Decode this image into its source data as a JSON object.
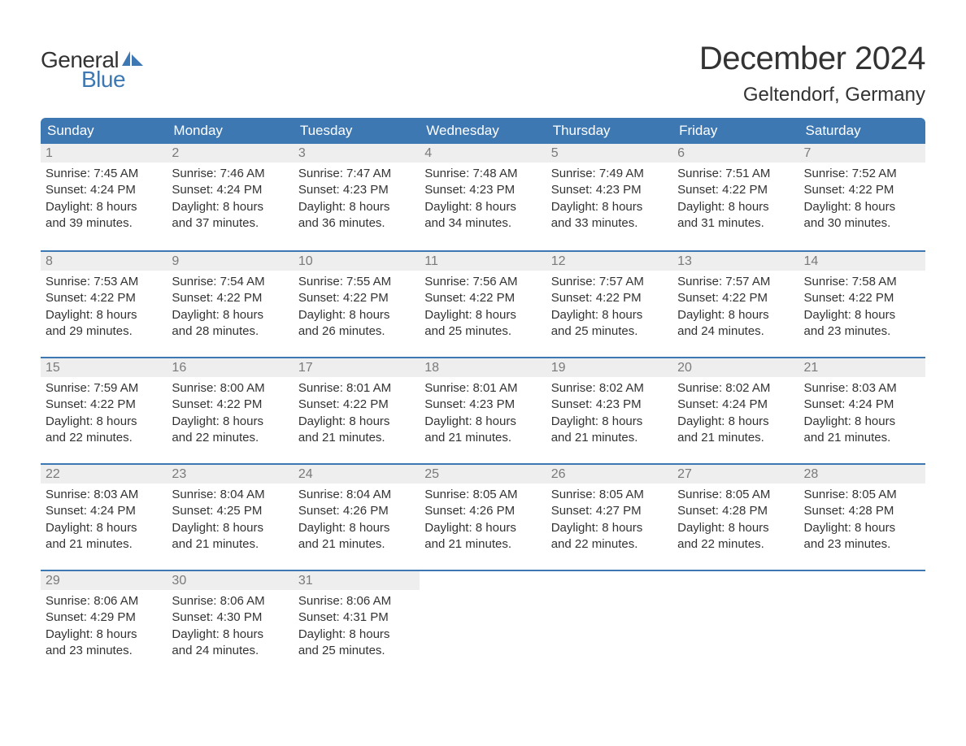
{
  "logo": {
    "word1": "General",
    "word2": "Blue",
    "word1_color": "#333333",
    "word2_color": "#3e78b3",
    "flag_color": "#3e78b3"
  },
  "title": "December 2024",
  "location": "Geltendorf, Germany",
  "styling": {
    "header_bg": "#3e78b3",
    "header_text_color": "#ffffff",
    "day_number_bg": "#eeeeee",
    "day_number_color": "#7a7a7a",
    "body_text_color": "#333333",
    "week_border_color": "#3e78b3",
    "page_bg": "#ffffff",
    "title_fontsize": 40,
    "location_fontsize": 24,
    "header_fontsize": 17,
    "body_fontsize": 15,
    "day_number_fontsize": 16,
    "columns": 7,
    "rows": 5
  },
  "day_headers": [
    "Sunday",
    "Monday",
    "Tuesday",
    "Wednesday",
    "Thursday",
    "Friday",
    "Saturday"
  ],
  "weeks": [
    [
      {
        "num": "1",
        "sunrise": "Sunrise: 7:45 AM",
        "sunset": "Sunset: 4:24 PM",
        "dl1": "Daylight: 8 hours",
        "dl2": "and 39 minutes."
      },
      {
        "num": "2",
        "sunrise": "Sunrise: 7:46 AM",
        "sunset": "Sunset: 4:24 PM",
        "dl1": "Daylight: 8 hours",
        "dl2": "and 37 minutes."
      },
      {
        "num": "3",
        "sunrise": "Sunrise: 7:47 AM",
        "sunset": "Sunset: 4:23 PM",
        "dl1": "Daylight: 8 hours",
        "dl2": "and 36 minutes."
      },
      {
        "num": "4",
        "sunrise": "Sunrise: 7:48 AM",
        "sunset": "Sunset: 4:23 PM",
        "dl1": "Daylight: 8 hours",
        "dl2": "and 34 minutes."
      },
      {
        "num": "5",
        "sunrise": "Sunrise: 7:49 AM",
        "sunset": "Sunset: 4:23 PM",
        "dl1": "Daylight: 8 hours",
        "dl2": "and 33 minutes."
      },
      {
        "num": "6",
        "sunrise": "Sunrise: 7:51 AM",
        "sunset": "Sunset: 4:22 PM",
        "dl1": "Daylight: 8 hours",
        "dl2": "and 31 minutes."
      },
      {
        "num": "7",
        "sunrise": "Sunrise: 7:52 AM",
        "sunset": "Sunset: 4:22 PM",
        "dl1": "Daylight: 8 hours",
        "dl2": "and 30 minutes."
      }
    ],
    [
      {
        "num": "8",
        "sunrise": "Sunrise: 7:53 AM",
        "sunset": "Sunset: 4:22 PM",
        "dl1": "Daylight: 8 hours",
        "dl2": "and 29 minutes."
      },
      {
        "num": "9",
        "sunrise": "Sunrise: 7:54 AM",
        "sunset": "Sunset: 4:22 PM",
        "dl1": "Daylight: 8 hours",
        "dl2": "and 28 minutes."
      },
      {
        "num": "10",
        "sunrise": "Sunrise: 7:55 AM",
        "sunset": "Sunset: 4:22 PM",
        "dl1": "Daylight: 8 hours",
        "dl2": "and 26 minutes."
      },
      {
        "num": "11",
        "sunrise": "Sunrise: 7:56 AM",
        "sunset": "Sunset: 4:22 PM",
        "dl1": "Daylight: 8 hours",
        "dl2": "and 25 minutes."
      },
      {
        "num": "12",
        "sunrise": "Sunrise: 7:57 AM",
        "sunset": "Sunset: 4:22 PM",
        "dl1": "Daylight: 8 hours",
        "dl2": "and 25 minutes."
      },
      {
        "num": "13",
        "sunrise": "Sunrise: 7:57 AM",
        "sunset": "Sunset: 4:22 PM",
        "dl1": "Daylight: 8 hours",
        "dl2": "and 24 minutes."
      },
      {
        "num": "14",
        "sunrise": "Sunrise: 7:58 AM",
        "sunset": "Sunset: 4:22 PM",
        "dl1": "Daylight: 8 hours",
        "dl2": "and 23 minutes."
      }
    ],
    [
      {
        "num": "15",
        "sunrise": "Sunrise: 7:59 AM",
        "sunset": "Sunset: 4:22 PM",
        "dl1": "Daylight: 8 hours",
        "dl2": "and 22 minutes."
      },
      {
        "num": "16",
        "sunrise": "Sunrise: 8:00 AM",
        "sunset": "Sunset: 4:22 PM",
        "dl1": "Daylight: 8 hours",
        "dl2": "and 22 minutes."
      },
      {
        "num": "17",
        "sunrise": "Sunrise: 8:01 AM",
        "sunset": "Sunset: 4:22 PM",
        "dl1": "Daylight: 8 hours",
        "dl2": "and 21 minutes."
      },
      {
        "num": "18",
        "sunrise": "Sunrise: 8:01 AM",
        "sunset": "Sunset: 4:23 PM",
        "dl1": "Daylight: 8 hours",
        "dl2": "and 21 minutes."
      },
      {
        "num": "19",
        "sunrise": "Sunrise: 8:02 AM",
        "sunset": "Sunset: 4:23 PM",
        "dl1": "Daylight: 8 hours",
        "dl2": "and 21 minutes."
      },
      {
        "num": "20",
        "sunrise": "Sunrise: 8:02 AM",
        "sunset": "Sunset: 4:24 PM",
        "dl1": "Daylight: 8 hours",
        "dl2": "and 21 minutes."
      },
      {
        "num": "21",
        "sunrise": "Sunrise: 8:03 AM",
        "sunset": "Sunset: 4:24 PM",
        "dl1": "Daylight: 8 hours",
        "dl2": "and 21 minutes."
      }
    ],
    [
      {
        "num": "22",
        "sunrise": "Sunrise: 8:03 AM",
        "sunset": "Sunset: 4:24 PM",
        "dl1": "Daylight: 8 hours",
        "dl2": "and 21 minutes."
      },
      {
        "num": "23",
        "sunrise": "Sunrise: 8:04 AM",
        "sunset": "Sunset: 4:25 PM",
        "dl1": "Daylight: 8 hours",
        "dl2": "and 21 minutes."
      },
      {
        "num": "24",
        "sunrise": "Sunrise: 8:04 AM",
        "sunset": "Sunset: 4:26 PM",
        "dl1": "Daylight: 8 hours",
        "dl2": "and 21 minutes."
      },
      {
        "num": "25",
        "sunrise": "Sunrise: 8:05 AM",
        "sunset": "Sunset: 4:26 PM",
        "dl1": "Daylight: 8 hours",
        "dl2": "and 21 minutes."
      },
      {
        "num": "26",
        "sunrise": "Sunrise: 8:05 AM",
        "sunset": "Sunset: 4:27 PM",
        "dl1": "Daylight: 8 hours",
        "dl2": "and 22 minutes."
      },
      {
        "num": "27",
        "sunrise": "Sunrise: 8:05 AM",
        "sunset": "Sunset: 4:28 PM",
        "dl1": "Daylight: 8 hours",
        "dl2": "and 22 minutes."
      },
      {
        "num": "28",
        "sunrise": "Sunrise: 8:05 AM",
        "sunset": "Sunset: 4:28 PM",
        "dl1": "Daylight: 8 hours",
        "dl2": "and 23 minutes."
      }
    ],
    [
      {
        "num": "29",
        "sunrise": "Sunrise: 8:06 AM",
        "sunset": "Sunset: 4:29 PM",
        "dl1": "Daylight: 8 hours",
        "dl2": "and 23 minutes."
      },
      {
        "num": "30",
        "sunrise": "Sunrise: 8:06 AM",
        "sunset": "Sunset: 4:30 PM",
        "dl1": "Daylight: 8 hours",
        "dl2": "and 24 minutes."
      },
      {
        "num": "31",
        "sunrise": "Sunrise: 8:06 AM",
        "sunset": "Sunset: 4:31 PM",
        "dl1": "Daylight: 8 hours",
        "dl2": "and 25 minutes."
      },
      null,
      null,
      null,
      null
    ]
  ]
}
